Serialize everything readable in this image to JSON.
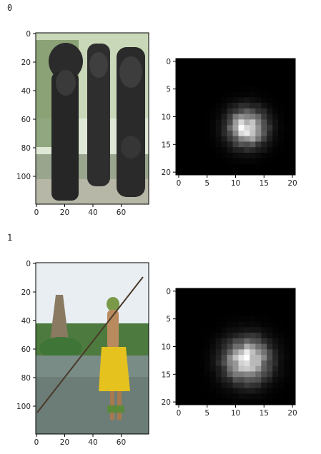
{
  "outputs": [
    {
      "index_label": "0",
      "photo": {
        "xticks": [
          "0",
          "20",
          "40",
          "60"
        ],
        "yticks": [
          "0",
          "20",
          "40",
          "60",
          "80",
          "100"
        ],
        "scene": "carved wooden tiki statues in garden"
      },
      "heatmap": {
        "xticks": [
          "0",
          "5",
          "10",
          "15",
          "20"
        ],
        "yticks": [
          "0",
          "5",
          "10",
          "15",
          "20"
        ],
        "blob_center": [
          12,
          12
        ],
        "blob_spread": 2.2,
        "colormap": "gray"
      }
    },
    {
      "index_label": "1",
      "photo": {
        "xticks": [
          "0",
          "20",
          "40",
          "60"
        ],
        "yticks": [
          "0",
          "20",
          "40",
          "60",
          "80",
          "100"
        ],
        "scene": "dancer in yellow grass skirt holding long pole by water"
      },
      "heatmap": {
        "xticks": [
          "0",
          "5",
          "10",
          "15",
          "20"
        ],
        "yticks": [
          "0",
          "5",
          "10",
          "15",
          "20"
        ],
        "blob_center": [
          12,
          12.5
        ],
        "blob_spread": 2.6,
        "colormap": "gray"
      }
    }
  ]
}
